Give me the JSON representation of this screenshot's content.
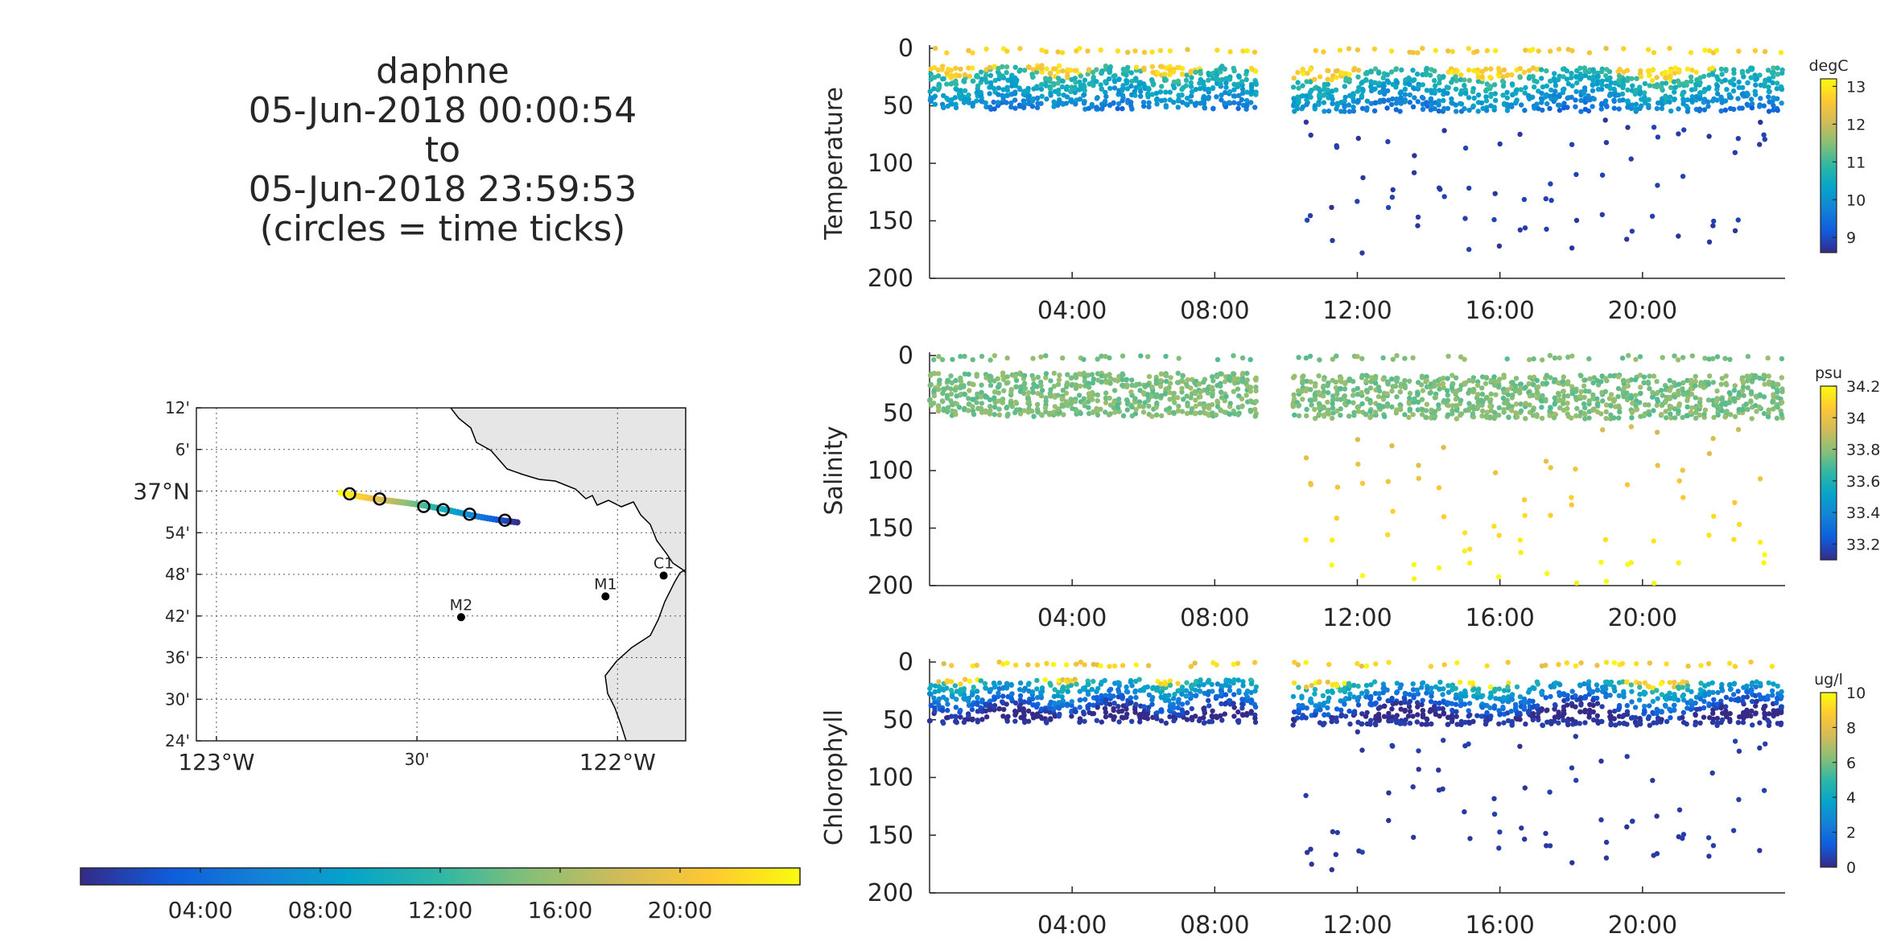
{
  "title": {
    "lines": [
      "daphne",
      "05-Jun-2018 00:00:54",
      "to",
      "05-Jun-2018 23:59:53",
      "(circles = time ticks)"
    ]
  },
  "map": {
    "lat_ticks": [
      "12'",
      "6'",
      "37°N",
      "54'",
      "48'",
      "42'",
      "36'",
      "30'",
      "24'"
    ],
    "lon_ticks": [
      "123°W",
      "30'",
      "122°W"
    ],
    "stations": [
      {
        "name": "C1",
        "lon": -121.885,
        "lat": 36.797
      },
      {
        "name": "M1",
        "lon": -122.03,
        "lat": 36.747
      },
      {
        "name": "M2",
        "lon": -122.39,
        "lat": 36.697
      }
    ],
    "track_start": {
      "lon": -122.69,
      "lat": 36.997
    },
    "track_end": {
      "lon": -122.25,
      "lat": 36.925
    },
    "time_tick_circles": 6,
    "land_color": "#e6e6e6"
  },
  "time_colorbar": {
    "ticks": [
      "04:00",
      "08:00",
      "12:00",
      "16:00",
      "20:00"
    ]
  },
  "chart_data": [
    {
      "type": "scatter",
      "xlabel": "",
      "ylabel": "Temperature",
      "x_ticks": [
        "04:00",
        "08:00",
        "12:00",
        "16:00",
        "20:00"
      ],
      "ylim": [
        0,
        200
      ],
      "y_ticks": [
        "0",
        "50",
        "100",
        "150",
        "200"
      ],
      "y_reversed": true,
      "colorbar_label": "degC",
      "colorbar_ticks": [
        "13",
        "12",
        "11",
        "10",
        "9"
      ],
      "clim": [
        8.6,
        13.2
      ],
      "data_gap": [
        "09:10",
        "10:10"
      ]
    },
    {
      "type": "scatter",
      "xlabel": "",
      "ylabel": "Salinity",
      "x_ticks": [
        "04:00",
        "08:00",
        "12:00",
        "16:00",
        "20:00"
      ],
      "ylim": [
        0,
        200
      ],
      "y_ticks": [
        "0",
        "50",
        "100",
        "150",
        "200"
      ],
      "y_reversed": true,
      "colorbar_label": "psu",
      "colorbar_ticks": [
        "34.2",
        "34",
        "33.8",
        "33.6",
        "33.4",
        "33.2"
      ],
      "clim": [
        33.1,
        34.2
      ],
      "data_gap": [
        "09:10",
        "10:10"
      ]
    },
    {
      "type": "scatter",
      "xlabel": "",
      "ylabel": "Chlorophyll",
      "x_ticks": [
        "04:00",
        "08:00",
        "12:00",
        "16:00",
        "20:00"
      ],
      "ylim": [
        0,
        200
      ],
      "y_ticks": [
        "0",
        "50",
        "100",
        "150",
        "200"
      ],
      "y_reversed": true,
      "colorbar_label": "ug/l",
      "colorbar_ticks": [
        "10",
        "8",
        "6",
        "4",
        "2",
        "0"
      ],
      "clim": [
        0,
        10
      ],
      "data_gap": [
        "09:10",
        "10:10"
      ]
    }
  ]
}
